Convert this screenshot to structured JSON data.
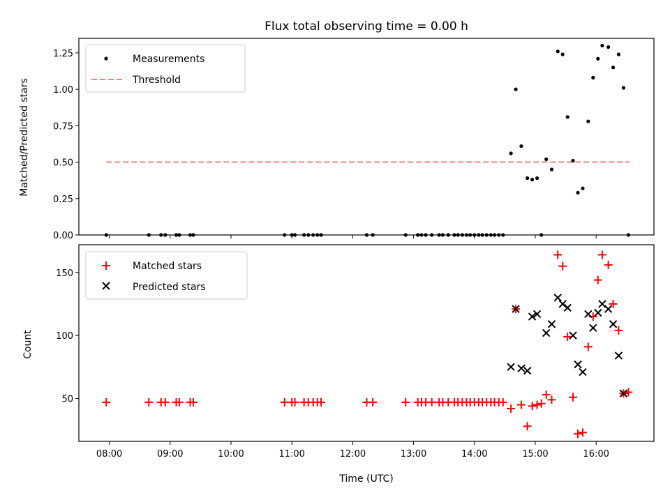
{
  "chart_data": [
    {
      "type": "scatter",
      "title": "Flux total observing time = 0.00 h",
      "ylabel": "Matched/Predicted stars",
      "xlabel": "",
      "ylim": [
        0,
        1.35
      ],
      "xlim": [
        7.5,
        16.95
      ],
      "yticks": [
        0.0,
        0.25,
        0.5,
        0.75,
        1.0,
        1.25
      ],
      "ytick_labels": [
        "0.00",
        "0.25",
        "0.50",
        "0.75",
        "1.00",
        "1.25"
      ],
      "legend": {
        "position": "top-left",
        "entries": [
          "Measurements",
          "Threshold"
        ]
      },
      "threshold": {
        "name": "Threshold",
        "y": 0.5,
        "x_start": 7.95,
        "x_end": 16.55,
        "color": "#f08080"
      },
      "series": [
        {
          "name": "Measurements",
          "color": "#000000",
          "points": [
            [
              7.95,
              0
            ],
            [
              8.65,
              0
            ],
            [
              8.85,
              0
            ],
            [
              8.92,
              0
            ],
            [
              9.1,
              0
            ],
            [
              9.15,
              0
            ],
            [
              9.33,
              0
            ],
            [
              9.38,
              0
            ],
            [
              10.88,
              0
            ],
            [
              11.0,
              0
            ],
            [
              11.05,
              0
            ],
            [
              11.2,
              0
            ],
            [
              11.27,
              0
            ],
            [
              11.35,
              0
            ],
            [
              11.42,
              0
            ],
            [
              11.48,
              0
            ],
            [
              12.23,
              0
            ],
            [
              12.33,
              0
            ],
            [
              12.87,
              0
            ],
            [
              13.07,
              0
            ],
            [
              13.13,
              0
            ],
            [
              13.2,
              0
            ],
            [
              13.3,
              0
            ],
            [
              13.42,
              0
            ],
            [
              13.48,
              0
            ],
            [
              13.57,
              0
            ],
            [
              13.67,
              0
            ],
            [
              13.73,
              0
            ],
            [
              13.8,
              0
            ],
            [
              13.87,
              0
            ],
            [
              13.93,
              0
            ],
            [
              14.0,
              0
            ],
            [
              14.07,
              0
            ],
            [
              14.13,
              0
            ],
            [
              14.2,
              0
            ],
            [
              14.27,
              0
            ],
            [
              14.33,
              0
            ],
            [
              14.4,
              0
            ],
            [
              14.47,
              0
            ],
            [
              14.6,
              0.56
            ],
            [
              14.68,
              1.0
            ],
            [
              14.77,
              0.61
            ],
            [
              14.87,
              0.39
            ],
            [
              14.95,
              0.38
            ],
            [
              15.03,
              0.39
            ],
            [
              15.1,
              0
            ],
            [
              15.18,
              0.52
            ],
            [
              15.27,
              0.45
            ],
            [
              15.37,
              1.26
            ],
            [
              15.45,
              1.24
            ],
            [
              15.53,
              0.81
            ],
            [
              15.62,
              0.51
            ],
            [
              15.7,
              0.29
            ],
            [
              15.78,
              0.32
            ],
            [
              15.87,
              0.78
            ],
            [
              15.95,
              1.08
            ],
            [
              16.03,
              1.21
            ],
            [
              16.1,
              1.3
            ],
            [
              16.2,
              1.29
            ],
            [
              16.28,
              1.15
            ],
            [
              16.37,
              1.24
            ],
            [
              16.45,
              1.01
            ],
            [
              16.53,
              0
            ]
          ]
        }
      ]
    },
    {
      "type": "scatter",
      "title": "",
      "xlabel": "Time (UTC)",
      "ylabel": "Count",
      "ylim": [
        16,
        172
      ],
      "xlim": [
        7.5,
        16.95
      ],
      "yticks": [
        50,
        100,
        150
      ],
      "ytick_labels": [
        "50",
        "100",
        "150"
      ],
      "xticks": [
        8,
        9,
        10,
        11,
        12,
        13,
        14,
        15,
        16
      ],
      "xtick_labels": [
        "08:00",
        "09:00",
        "10:00",
        "11:00",
        "12:00",
        "13:00",
        "14:00",
        "15:00",
        "16:00"
      ],
      "legend": {
        "position": "top-left",
        "entries": [
          "Matched stars",
          "Predicted stars"
        ]
      },
      "series": [
        {
          "name": "Matched stars",
          "marker": "+",
          "color": "#ff0000",
          "points": [
            [
              7.95,
              47
            ],
            [
              8.65,
              47
            ],
            [
              8.85,
              47
            ],
            [
              8.92,
              47
            ],
            [
              9.1,
              47
            ],
            [
              9.15,
              47
            ],
            [
              9.33,
              47
            ],
            [
              9.38,
              47
            ],
            [
              10.88,
              47
            ],
            [
              11.0,
              47
            ],
            [
              11.05,
              47
            ],
            [
              11.2,
              47
            ],
            [
              11.27,
              47
            ],
            [
              11.35,
              47
            ],
            [
              11.42,
              47
            ],
            [
              11.48,
              47
            ],
            [
              12.23,
              47
            ],
            [
              12.33,
              47
            ],
            [
              12.87,
              47
            ],
            [
              13.07,
              47
            ],
            [
              13.13,
              47
            ],
            [
              13.2,
              47
            ],
            [
              13.3,
              47
            ],
            [
              13.42,
              47
            ],
            [
              13.48,
              47
            ],
            [
              13.57,
              47
            ],
            [
              13.67,
              47
            ],
            [
              13.73,
              47
            ],
            [
              13.8,
              47
            ],
            [
              13.87,
              47
            ],
            [
              13.93,
              47
            ],
            [
              14.0,
              47
            ],
            [
              14.07,
              47
            ],
            [
              14.13,
              47
            ],
            [
              14.2,
              47
            ],
            [
              14.27,
              47
            ],
            [
              14.33,
              47
            ],
            [
              14.4,
              47
            ],
            [
              14.47,
              47
            ],
            [
              14.6,
              42
            ],
            [
              14.68,
              121
            ],
            [
              14.77,
              45
            ],
            [
              14.87,
              28
            ],
            [
              14.95,
              44
            ],
            [
              15.03,
              45
            ],
            [
              15.1,
              46
            ],
            [
              15.18,
              53
            ],
            [
              15.27,
              49
            ],
            [
              15.37,
              164
            ],
            [
              15.45,
              155
            ],
            [
              15.53,
              99
            ],
            [
              15.62,
              51
            ],
            [
              15.7,
              22
            ],
            [
              15.78,
              23
            ],
            [
              15.87,
              91
            ],
            [
              15.95,
              115
            ],
            [
              16.03,
              144
            ],
            [
              16.1,
              164
            ],
            [
              16.2,
              156
            ],
            [
              16.28,
              125
            ],
            [
              16.37,
              104
            ],
            [
              16.45,
              54
            ],
            [
              16.53,
              55
            ]
          ]
        },
        {
          "name": "Predicted stars",
          "marker": "x",
          "color": "#000000",
          "points": [
            [
              14.6,
              75
            ],
            [
              14.68,
              121
            ],
            [
              14.77,
              74
            ],
            [
              14.87,
              72
            ],
            [
              14.95,
              115
            ],
            [
              15.03,
              117
            ],
            [
              15.18,
              102
            ],
            [
              15.27,
              109
            ],
            [
              15.37,
              130
            ],
            [
              15.45,
              125
            ],
            [
              15.53,
              122
            ],
            [
              15.62,
              100
            ],
            [
              15.7,
              77
            ],
            [
              15.78,
              71
            ],
            [
              15.87,
              117
            ],
            [
              15.95,
              106
            ],
            [
              16.03,
              118
            ],
            [
              16.1,
              125
            ],
            [
              16.2,
              121
            ],
            [
              16.28,
              109
            ],
            [
              16.37,
              84
            ],
            [
              16.45,
              54
            ]
          ]
        }
      ]
    }
  ]
}
